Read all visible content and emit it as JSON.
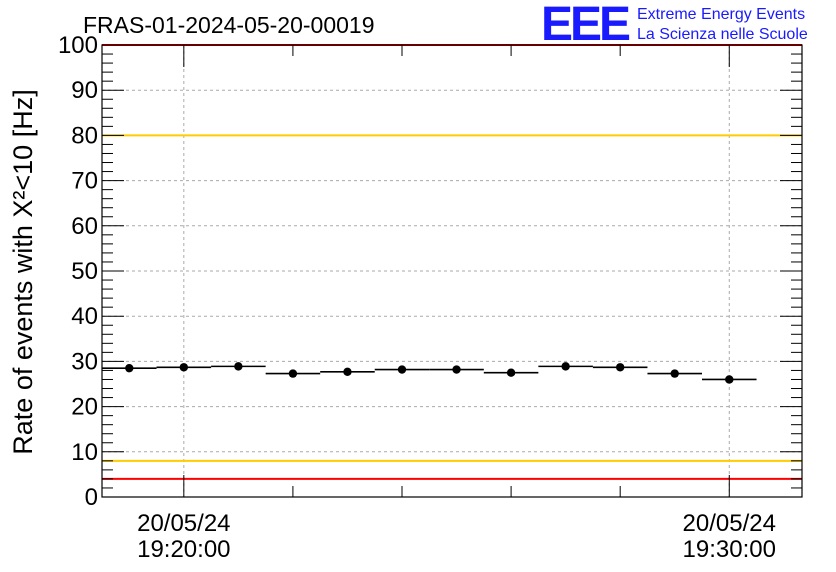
{
  "chart_data": {
    "type": "scatter",
    "title": "FRAS-01-2024-05-20-00019",
    "ylabel": "Rate of events with X²<10 [Hz]",
    "ylim": [
      0,
      100
    ],
    "yticks": [
      0,
      10,
      20,
      30,
      40,
      50,
      60,
      70,
      80,
      90,
      100
    ],
    "xlim": [
      "20/05/24 19:18:30",
      "20/05/24 19:31:20"
    ],
    "xtick_labels": [
      {
        "date": "20/05/24",
        "time": "19:20:00"
      },
      {
        "date": "20/05/24",
        "time": "19:30:00"
      }
    ],
    "grid": true,
    "points": [
      {
        "x": "19:19:00",
        "xerr_s": 30,
        "y": 28.5
      },
      {
        "x": "19:20:00",
        "xerr_s": 30,
        "y": 28.7
      },
      {
        "x": "19:21:00",
        "xerr_s": 30,
        "y": 28.9
      },
      {
        "x": "19:22:00",
        "xerr_s": 30,
        "y": 27.3
      },
      {
        "x": "19:23:00",
        "xerr_s": 30,
        "y": 27.7
      },
      {
        "x": "19:24:00",
        "xerr_s": 30,
        "y": 28.2
      },
      {
        "x": "19:25:00",
        "xerr_s": 30,
        "y": 28.2
      },
      {
        "x": "19:26:00",
        "xerr_s": 30,
        "y": 27.5
      },
      {
        "x": "19:27:00",
        "xerr_s": 30,
        "y": 28.9
      },
      {
        "x": "19:28:00",
        "xerr_s": 30,
        "y": 28.7
      },
      {
        "x": "19:29:00",
        "xerr_s": 30,
        "y": 27.3
      },
      {
        "x": "19:30:00",
        "xerr_s": 30,
        "y": 26.0
      }
    ],
    "reference_lines": [
      {
        "y": 100,
        "color": "#ff0000"
      },
      {
        "y": 80,
        "color": "#ffcc00"
      },
      {
        "y": 8,
        "color": "#ffcc00"
      },
      {
        "y": 4,
        "color": "#ff0000"
      }
    ],
    "marker_color": "#000000"
  },
  "brand": {
    "logo": "EEE",
    "line1": "Extreme Energy Events",
    "line2": "La Scienza nelle Scuole",
    "color": "#1a1aff"
  }
}
